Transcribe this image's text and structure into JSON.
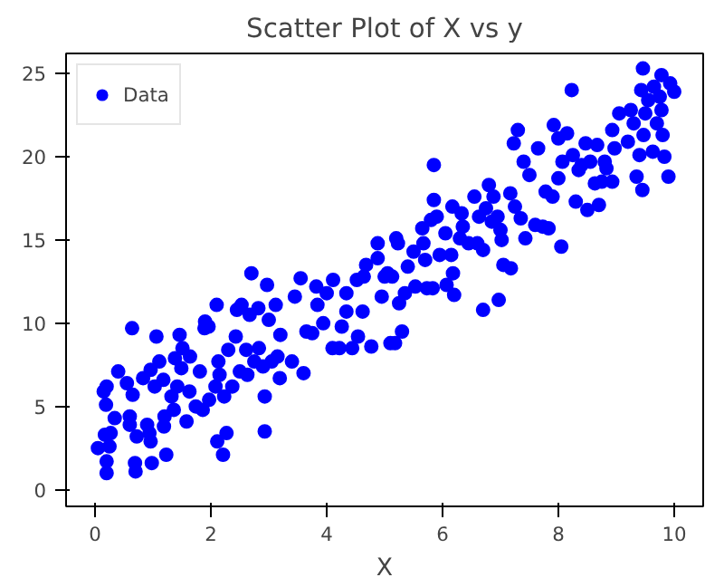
{
  "chart_data": {
    "type": "scatter",
    "title": "Scatter Plot of X vs y",
    "xlabel": "X",
    "xlim": [
      -0.5,
      10.5
    ],
    "ylim": [
      -1.0,
      26.2
    ],
    "xticks": [
      0,
      2,
      4,
      6,
      8,
      10
    ],
    "yticks": [
      0,
      5,
      10,
      15,
      20,
      25
    ],
    "grid": false,
    "legend": "top left",
    "marker": "circle",
    "series": [
      {
        "name": "Data",
        "color": "#0000ff",
        "x": [
          0.2,
          0.2,
          0.05,
          0.25,
          0.17,
          0.27,
          0.19,
          0.34,
          0.15,
          0.2,
          0.4,
          0.55,
          0.65,
          0.64,
          0.6,
          0.6,
          0.72,
          0.69,
          0.7,
          0.9,
          0.96,
          0.98,
          0.94,
          0.83,
          0.96,
          1.03,
          1.06,
          1.11,
          1.18,
          1.2,
          1.19,
          1.23,
          1.32,
          1.36,
          1.42,
          1.38,
          1.46,
          1.51,
          1.49,
          1.58,
          1.63,
          1.64,
          1.74,
          1.81,
          1.86,
          1.9,
          1.96,
          1.89,
          1.97,
          2.08,
          2.1,
          2.11,
          2.21,
          2.27,
          2.15,
          2.13,
          2.23,
          2.3,
          2.37,
          2.43,
          2.45,
          2.53,
          2.5,
          2.61,
          2.63,
          2.67,
          2.7,
          2.75,
          2.83,
          2.82,
          2.9,
          2.93,
          2.93,
          2.97,
          3.0,
          3.05,
          3.12,
          3.15,
          3.19,
          3.2,
          3.4,
          3.45,
          3.55,
          3.6,
          3.65,
          3.75,
          3.82,
          3.84,
          3.94,
          4.0,
          4.11,
          4.1,
          4.22,
          4.26,
          4.34,
          4.34,
          4.44,
          4.52,
          4.54,
          4.62,
          4.64,
          4.68,
          4.77,
          4.88,
          4.88,
          4.95,
          5.05,
          5.1,
          5.0,
          5.2,
          5.23,
          5.13,
          5.25,
          5.3,
          5.18,
          5.4,
          5.35,
          5.5,
          5.53,
          5.65,
          5.67,
          5.7,
          5.73,
          5.8,
          5.83,
          5.85,
          5.85,
          5.9,
          5.95,
          6.05,
          6.07,
          6.15,
          6.18,
          6.2,
          6.17,
          6.3,
          6.33,
          6.35,
          6.45,
          6.55,
          6.6,
          6.63,
          6.7,
          6.7,
          6.75,
          6.8,
          6.85,
          6.88,
          6.95,
          6.97,
          7.0,
          7.02,
          7.05,
          7.17,
          7.18,
          7.25,
          7.23,
          7.3,
          7.35,
          7.4,
          7.43,
          7.5,
          7.6,
          7.65,
          7.73,
          7.83,
          7.78,
          7.9,
          7.92,
          8.0,
          8.0,
          8.05,
          8.07,
          8.15,
          8.23,
          8.25,
          8.3,
          8.35,
          8.4,
          8.47,
          8.5,
          8.55,
          8.63,
          8.67,
          8.7,
          8.75,
          8.8,
          8.83,
          8.93,
          8.93,
          8.97,
          9.05,
          9.2,
          9.25,
          9.3,
          9.35,
          9.4,
          9.43,
          9.45,
          9.46,
          9.47,
          9.5,
          9.55,
          9.63,
          9.65,
          9.7,
          9.75,
          9.78,
          9.78,
          9.8,
          9.83,
          9.9,
          9.93,
          10.0
        ],
        "values": [
          1.0,
          1.7,
          2.5,
          2.6,
          3.3,
          3.4,
          5.1,
          4.3,
          5.9,
          6.2,
          7.1,
          6.4,
          5.7,
          9.7,
          4.4,
          3.9,
          3.2,
          1.6,
          1.1,
          3.9,
          2.9,
          1.6,
          3.4,
          6.7,
          7.2,
          6.2,
          9.2,
          7.7,
          6.6,
          4.4,
          3.8,
          2.1,
          5.6,
          4.8,
          6.2,
          7.9,
          9.3,
          8.5,
          7.3,
          4.1,
          5.9,
          8.0,
          5.0,
          7.1,
          4.8,
          10.1,
          9.8,
          9.7,
          5.4,
          6.2,
          11.1,
          2.9,
          2.1,
          3.4,
          6.9,
          7.7,
          5.6,
          8.4,
          6.2,
          9.2,
          10.8,
          11.1,
          7.1,
          8.4,
          6.9,
          10.5,
          13.0,
          7.7,
          8.5,
          10.9,
          7.4,
          5.6,
          3.5,
          12.3,
          10.2,
          7.7,
          11.1,
          8.0,
          6.7,
          9.3,
          7.7,
          11.6,
          12.7,
          7.0,
          9.5,
          9.4,
          12.2,
          11.1,
          10.0,
          11.8,
          12.6,
          8.5,
          8.5,
          9.8,
          11.8,
          10.7,
          8.5,
          12.6,
          9.2,
          10.7,
          12.8,
          13.5,
          8.6,
          14.8,
          13.9,
          11.6,
          13.0,
          8.8,
          12.8,
          15.1,
          14.8,
          12.8,
          11.2,
          9.5,
          8.8,
          13.4,
          11.8,
          14.3,
          12.2,
          15.7,
          14.8,
          13.8,
          12.1,
          16.2,
          12.1,
          19.5,
          17.4,
          16.4,
          14.1,
          15.4,
          12.3,
          14.1,
          13.0,
          11.7,
          17.0,
          15.1,
          16.6,
          15.8,
          14.8,
          17.6,
          14.8,
          16.4,
          14.4,
          10.8,
          16.9,
          18.3,
          16.1,
          17.6,
          16.4,
          11.4,
          15.6,
          15.0,
          13.5,
          17.8,
          13.3,
          17.0,
          20.8,
          21.6,
          16.3,
          19.7,
          15.1,
          18.9,
          15.9,
          20.5,
          15.8,
          15.7,
          17.9,
          17.6,
          21.9,
          18.7,
          21.1,
          14.6,
          19.7,
          21.4,
          24.0,
          20.1,
          17.3,
          19.2,
          19.5,
          20.8,
          16.8,
          19.7,
          18.4,
          20.7,
          17.1,
          18.5,
          19.7,
          19.3,
          18.5,
          21.6,
          20.5,
          22.6,
          20.9,
          22.8,
          22.0,
          18.8,
          20.1,
          24.0,
          18.0,
          25.3,
          21.3,
          22.6,
          23.4,
          20.3,
          24.2,
          22.0,
          23.6,
          22.8,
          24.9,
          21.3,
          20.0,
          18.8,
          24.4,
          23.9
        ]
      }
    ]
  }
}
